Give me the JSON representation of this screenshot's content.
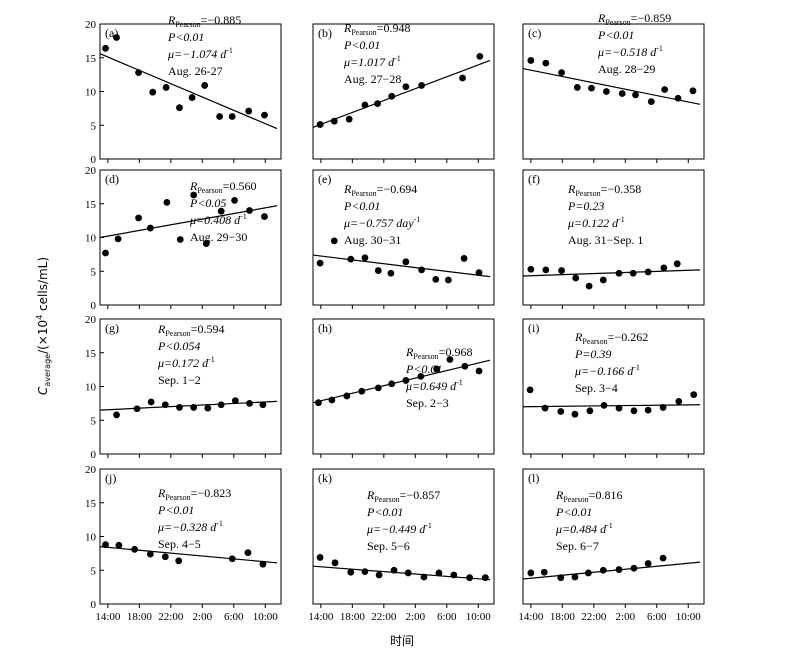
{
  "chart_data": {
    "type": "scatter",
    "ylabel": "Caverage/(×10⁴ cells/mL)",
    "xlabel": "时间",
    "ylim": [
      0,
      20
    ],
    "yticks": [
      0,
      5,
      10,
      15,
      20
    ],
    "xlim": [
      13,
      36
    ],
    "xticks": [
      14,
      18,
      22,
      26,
      30,
      34
    ],
    "xtick_labels": [
      "14:00",
      "18:00",
      "22:00",
      "2:00",
      "6:00",
      "10:00"
    ],
    "panels": [
      {
        "label": "(a)",
        "r": "=−0.885",
        "p": "P<0.01",
        "mu": "μ=−1.074 d",
        "mu_sup": "-1",
        "date": "Aug. 26-27",
        "points": [
          [
            13.7,
            16.4
          ],
          [
            15.1,
            18.0
          ],
          [
            17.9,
            12.8
          ],
          [
            19.7,
            9.9
          ],
          [
            21.4,
            10.6
          ],
          [
            23.1,
            7.6
          ],
          [
            24.7,
            9.1
          ],
          [
            26.3,
            10.9
          ],
          [
            28.2,
            6.3
          ],
          [
            29.8,
            6.3
          ],
          [
            31.9,
            7.1
          ],
          [
            33.9,
            6.5
          ]
        ],
        "fit": [
          [
            13,
            15.6
          ],
          [
            35.5,
            4.5
          ]
        ]
      },
      {
        "label": "(b)",
        "r": "=0.948",
        "p": "P<0.01",
        "mu": "μ=1.017 d",
        "mu_sup": "-1",
        "date": "Aug. 27−28",
        "points": [
          [
            13.9,
            5.1
          ],
          [
            15.7,
            5.6
          ],
          [
            17.6,
            5.9
          ],
          [
            19.6,
            8.0
          ],
          [
            21.2,
            8.2
          ],
          [
            23.0,
            9.3
          ],
          [
            24.8,
            10.7
          ],
          [
            26.8,
            10.9
          ],
          [
            32.0,
            12.0
          ],
          [
            34.2,
            15.2
          ]
        ],
        "fit": [
          [
            13,
            4.7
          ],
          [
            35.5,
            14.6
          ]
        ]
      },
      {
        "label": "(c)",
        "r": "=−0.859",
        "p": "P<0.01",
        "mu": "μ=−0.518 d",
        "mu_sup": "-1",
        "date": "Aug. 28−29",
        "points": [
          [
            14.0,
            14.6
          ],
          [
            15.9,
            14.2
          ],
          [
            17.9,
            12.8
          ],
          [
            19.9,
            10.6
          ],
          [
            21.7,
            10.5
          ],
          [
            23.6,
            10.0
          ],
          [
            25.6,
            9.7
          ],
          [
            27.3,
            9.5
          ],
          [
            29.3,
            8.5
          ],
          [
            31.0,
            10.3
          ],
          [
            32.7,
            9.0
          ],
          [
            34.6,
            10.1
          ]
        ],
        "fit": [
          [
            13,
            13.4
          ],
          [
            35.5,
            8.1
          ]
        ]
      },
      {
        "label": "(d)",
        "r": "=0.560",
        "p": "P<0.05",
        "mu": "μ=0.408 d",
        "mu_sup": "-1",
        "date": "Aug. 29−30",
        "points": [
          [
            13.7,
            7.7
          ],
          [
            15.3,
            9.8
          ],
          [
            17.9,
            12.9
          ],
          [
            19.4,
            11.4
          ],
          [
            21.5,
            15.2
          ],
          [
            23.2,
            9.7
          ],
          [
            24.9,
            16.3
          ],
          [
            26.5,
            9.1
          ],
          [
            28.4,
            13.9
          ],
          [
            30.1,
            15.5
          ],
          [
            32.0,
            14.0
          ],
          [
            33.9,
            13.1
          ]
        ],
        "fit": [
          [
            13,
            10.0
          ],
          [
            35.5,
            14.7
          ]
        ]
      },
      {
        "label": "(e)",
        "r": "=−0.694",
        "p": "P<0.01",
        "mu": "μ=−0.757 day",
        "mu_sup": "-1",
        "date": "Aug. 30−31",
        "points": [
          [
            13.9,
            6.2
          ],
          [
            15.7,
            9.5
          ],
          [
            17.8,
            6.8
          ],
          [
            19.6,
            7.0
          ],
          [
            21.3,
            5.1
          ],
          [
            22.9,
            4.7
          ],
          [
            24.8,
            6.4
          ],
          [
            26.8,
            5.2
          ],
          [
            28.6,
            3.8
          ],
          [
            30.2,
            3.7
          ],
          [
            32.2,
            6.9
          ],
          [
            34.1,
            4.8
          ]
        ],
        "fit": [
          [
            13,
            7.4
          ],
          [
            35.5,
            4.2
          ]
        ]
      },
      {
        "label": "(f)",
        "r": "=−0.358",
        "p": "P=0.23",
        "mu": "μ=0.122 d",
        "mu_sup": "-1",
        "date": "Aug. 31−Sep. 1",
        "points": [
          [
            14.0,
            5.3
          ],
          [
            15.9,
            5.2
          ],
          [
            17.9,
            5.1
          ],
          [
            19.7,
            4.0
          ],
          [
            21.4,
            2.8
          ],
          [
            23.2,
            3.7
          ],
          [
            25.2,
            4.7
          ],
          [
            27.0,
            4.7
          ],
          [
            28.9,
            4.9
          ],
          [
            30.9,
            5.5
          ],
          [
            32.6,
            6.1
          ]
        ],
        "fit": [
          [
            13,
            4.3
          ],
          [
            35.5,
            5.2
          ]
        ]
      },
      {
        "label": "(g)",
        "r": "=0.594",
        "p": "P<0.054",
        "mu": "μ=0.172 d",
        "mu_sup": "-1",
        "date": "Sep. 1−2",
        "points": [
          [
            15.1,
            5.8
          ],
          [
            17.7,
            6.7
          ],
          [
            19.5,
            7.7
          ],
          [
            21.3,
            7.3
          ],
          [
            23.1,
            6.9
          ],
          [
            24.9,
            6.9
          ],
          [
            26.7,
            6.8
          ],
          [
            28.4,
            7.3
          ],
          [
            30.2,
            7.9
          ],
          [
            32.0,
            7.5
          ],
          [
            33.7,
            7.3
          ]
        ],
        "fit": [
          [
            13,
            6.5
          ],
          [
            35.5,
            7.8
          ]
        ]
      },
      {
        "label": "(h)",
        "r": "=0.968",
        "p": "P<0.01",
        "mu": "μ=0.649 d",
        "mu_sup": "-1",
        "date": "Sep. 2−3",
        "points": [
          [
            13.7,
            7.6
          ],
          [
            15.4,
            8.0
          ],
          [
            17.3,
            8.6
          ],
          [
            19.2,
            9.3
          ],
          [
            21.3,
            9.8
          ],
          [
            23.0,
            10.4
          ],
          [
            24.8,
            10.9
          ],
          [
            26.7,
            11.5
          ],
          [
            28.7,
            12.6
          ],
          [
            30.4,
            14.0
          ],
          [
            32.3,
            13.0
          ],
          [
            34.1,
            12.3
          ]
        ],
        "fit": [
          [
            13,
            7.6
          ],
          [
            35.5,
            13.9
          ]
        ]
      },
      {
        "label": "(i)",
        "r": "=−0.262",
        "p": "P=0.39",
        "mu": "μ=−0.166 d",
        "mu_sup": "-1",
        "date": "Sep. 3−4",
        "points": [
          [
            13.9,
            9.5
          ],
          [
            15.8,
            6.8
          ],
          [
            17.8,
            6.3
          ],
          [
            19.6,
            5.9
          ],
          [
            21.5,
            6.4
          ],
          [
            23.3,
            7.2
          ],
          [
            25.2,
            6.8
          ],
          [
            27.1,
            6.4
          ],
          [
            28.9,
            6.5
          ],
          [
            30.8,
            6.9
          ],
          [
            32.8,
            7.8
          ],
          [
            34.7,
            8.8
          ]
        ],
        "fit": [
          [
            13,
            7.0
          ],
          [
            35.5,
            7.3
          ]
        ]
      },
      {
        "label": "(j)",
        "r": "=−0.823",
        "p": "P<0.01",
        "mu": "μ=−0.328 d",
        "mu_sup": "-1",
        "date": "Sep. 4−5",
        "points": [
          [
            13.7,
            8.8
          ],
          [
            15.4,
            8.7
          ],
          [
            17.4,
            8.1
          ],
          [
            19.4,
            7.4
          ],
          [
            21.3,
            7.0
          ],
          [
            23.0,
            6.4
          ],
          [
            29.8,
            6.7
          ],
          [
            31.8,
            7.6
          ],
          [
            33.7,
            5.9
          ]
        ],
        "fit": [
          [
            13,
            8.5
          ],
          [
            35.5,
            6.1
          ]
        ]
      },
      {
        "label": "(k)",
        "r": "=−0.857",
        "p": "P<0.01",
        "mu": "μ=−0.449 d",
        "mu_sup": "-1",
        "date": "Sep. 5−6",
        "points": [
          [
            13.9,
            6.9
          ],
          [
            15.8,
            6.1
          ],
          [
            17.8,
            4.7
          ],
          [
            19.6,
            4.8
          ],
          [
            21.4,
            4.3
          ],
          [
            23.3,
            5.0
          ],
          [
            25.1,
            4.6
          ],
          [
            27.1,
            4.0
          ],
          [
            29.0,
            4.6
          ],
          [
            30.9,
            4.3
          ],
          [
            32.9,
            3.9
          ],
          [
            34.9,
            3.9
          ]
        ],
        "fit": [
          [
            13,
            5.6
          ],
          [
            35.5,
            3.6
          ]
        ]
      },
      {
        "label": "(l)",
        "r": "=0.816",
        "p": "P<0.01",
        "mu": "μ=0.484 d",
        "mu_sup": "-1",
        "date": "Sep. 6−7",
        "points": [
          [
            14.0,
            4.6
          ],
          [
            15.7,
            4.7
          ],
          [
            17.8,
            3.9
          ],
          [
            19.6,
            4.0
          ],
          [
            21.3,
            4.6
          ],
          [
            23.2,
            5.0
          ],
          [
            25.2,
            5.1
          ],
          [
            27.1,
            5.3
          ],
          [
            28.9,
            6.0
          ],
          [
            30.8,
            6.8
          ]
        ],
        "fit": [
          [
            13,
            3.7
          ],
          [
            35.5,
            6.2
          ]
        ]
      }
    ]
  }
}
